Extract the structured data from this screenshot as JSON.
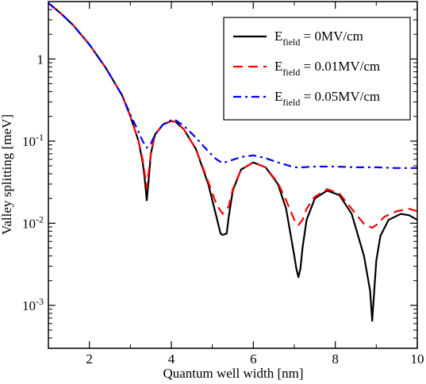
{
  "chart_data": {
    "type": "line",
    "xlabel": "Quantum well width [nm]",
    "ylabel": "Valley splitting [meV]",
    "xlim": [
      1,
      10
    ],
    "ylim": [
      0.0003,
      5
    ],
    "yscale": "log",
    "grid": false,
    "legend_position": "top-right",
    "x_ticks": [
      {
        "value": 2,
        "label": "2"
      },
      {
        "value": 4,
        "label": "4"
      },
      {
        "value": 6,
        "label": "6"
      },
      {
        "value": 8,
        "label": "8"
      },
      {
        "value": 10,
        "label": "10"
      }
    ],
    "y_ticks": [
      {
        "value": 1,
        "base": "1",
        "exp": ""
      },
      {
        "value": 0.1,
        "base": "10",
        "exp": "-1"
      },
      {
        "value": 0.01,
        "base": "10",
        "exp": "-2"
      },
      {
        "value": 0.001,
        "base": "10",
        "exp": "-3"
      }
    ],
    "series": [
      {
        "legend_main": "E",
        "legend_sub": "field",
        "legend_rest": " = 0MV/cm",
        "color": "#000000",
        "dash": "",
        "x": [
          1.0,
          1.3,
          1.6,
          2.0,
          2.4,
          2.8,
          3.0,
          3.2,
          3.3,
          3.35,
          3.4,
          3.45,
          3.5,
          3.6,
          3.8,
          4.0,
          4.1,
          4.3,
          4.6,
          4.9,
          5.1,
          5.2,
          5.25,
          5.35,
          5.4,
          5.5,
          5.7,
          6.0,
          6.3,
          6.6,
          6.8,
          7.0,
          7.05,
          7.1,
          7.15,
          7.2,
          7.3,
          7.5,
          7.8,
          8.1,
          8.4,
          8.7,
          8.85,
          8.9,
          8.95,
          9.0,
          9.1,
          9.3,
          9.6,
          9.8,
          10.0
        ],
        "y": [
          4.8,
          3.6,
          2.6,
          1.5,
          0.78,
          0.36,
          0.2,
          0.1,
          0.055,
          0.035,
          0.019,
          0.035,
          0.07,
          0.12,
          0.16,
          0.175,
          0.172,
          0.14,
          0.08,
          0.03,
          0.012,
          0.0075,
          0.0072,
          0.0075,
          0.012,
          0.025,
          0.045,
          0.055,
          0.048,
          0.03,
          0.015,
          0.004,
          0.0028,
          0.0022,
          0.0028,
          0.005,
          0.011,
          0.02,
          0.025,
          0.022,
          0.013,
          0.004,
          0.0015,
          0.00065,
          0.0015,
          0.0035,
          0.007,
          0.011,
          0.013,
          0.0125,
          0.011
        ]
      },
      {
        "legend_main": "E",
        "legend_sub": "field",
        "legend_rest": " = 0.01MV/cm",
        "color": "#ff0000",
        "dash": "12,7",
        "x": [
          1.0,
          1.3,
          1.6,
          2.0,
          2.4,
          2.8,
          3.0,
          3.2,
          3.3,
          3.4,
          3.5,
          3.6,
          3.8,
          4.0,
          4.1,
          4.3,
          4.6,
          4.9,
          5.1,
          5.25,
          5.4,
          5.5,
          5.7,
          6.0,
          6.3,
          6.6,
          6.8,
          7.0,
          7.1,
          7.2,
          7.3,
          7.5,
          7.8,
          8.1,
          8.4,
          8.7,
          8.9,
          9.0,
          9.2,
          9.5,
          9.8,
          10.0
        ],
        "y": [
          4.8,
          3.6,
          2.6,
          1.5,
          0.78,
          0.36,
          0.2,
          0.1,
          0.06,
          0.027,
          0.07,
          0.12,
          0.16,
          0.175,
          0.172,
          0.14,
          0.08,
          0.032,
          0.017,
          0.013,
          0.016,
          0.026,
          0.045,
          0.055,
          0.048,
          0.031,
          0.019,
          0.011,
          0.0095,
          0.011,
          0.015,
          0.021,
          0.026,
          0.023,
          0.015,
          0.0098,
          0.0088,
          0.0095,
          0.012,
          0.014,
          0.015,
          0.014
        ]
      },
      {
        "legend_main": "E",
        "legend_sub": "field",
        "legend_rest": " = 0.05MV/cm",
        "color": "#0000ff",
        "dash": "10,5,3,5",
        "x": [
          1.0,
          1.3,
          1.6,
          2.0,
          2.4,
          2.8,
          3.0,
          3.2,
          3.3,
          3.4,
          3.5,
          3.6,
          3.8,
          4.0,
          4.1,
          4.3,
          4.6,
          4.9,
          5.1,
          5.25,
          5.4,
          5.7,
          6.0,
          6.3,
          6.6,
          7.0,
          7.2,
          7.5,
          8.0,
          8.5,
          9.0,
          9.5,
          10.0
        ],
        "y": [
          4.8,
          3.6,
          2.6,
          1.5,
          0.78,
          0.36,
          0.21,
          0.13,
          0.1,
          0.083,
          0.093,
          0.12,
          0.16,
          0.18,
          0.18,
          0.155,
          0.11,
          0.075,
          0.06,
          0.054,
          0.057,
          0.064,
          0.067,
          0.062,
          0.055,
          0.048,
          0.048,
          0.049,
          0.049,
          0.048,
          0.048,
          0.047,
          0.047
        ]
      }
    ]
  }
}
